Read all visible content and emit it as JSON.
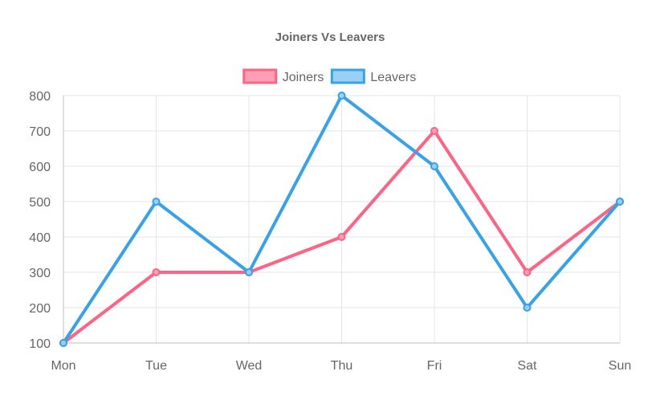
{
  "chart_data": {
    "type": "line",
    "title": "Joiners Vs Leavers",
    "categories": [
      "Mon",
      "Tue",
      "Wed",
      "Thu",
      "Fri",
      "Sat",
      "Sun"
    ],
    "series": [
      {
        "name": "Joiners",
        "values": [
          100,
          300,
          300,
          400,
          700,
          300,
          500
        ],
        "color": "#ff6384",
        "fill": "#ff9fb4"
      },
      {
        "name": "Leavers",
        "values": [
          100,
          500,
          300,
          800,
          600,
          200,
          500
        ],
        "color": "#36a2eb",
        "fill": "#9ad0f5"
      }
    ],
    "yticks": [
      100,
      200,
      300,
      400,
      500,
      600,
      700,
      800
    ],
    "ylim": [
      100,
      800
    ],
    "grid": true,
    "legend": "top-center"
  }
}
